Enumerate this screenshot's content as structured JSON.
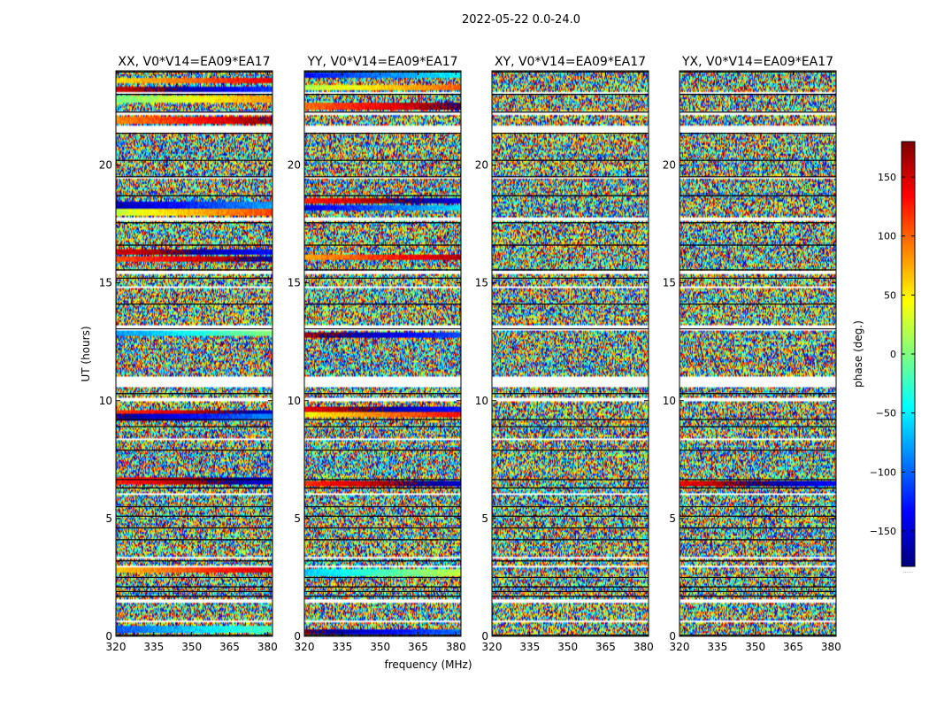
{
  "chart_data": {
    "type": "heatmap",
    "figure_title": "2022-05-22 0.0-24.0",
    "colorscale": "jet",
    "colorbar": {
      "label": "phase (deg.)",
      "range": [
        -180,
        180
      ],
      "ticks": [
        150,
        100,
        50,
        0,
        -50,
        -100,
        -150
      ],
      "tick_labels": [
        "150",
        "100",
        "50",
        "0",
        "−50",
        "−100",
        "−150"
      ],
      "footnote": "......"
    },
    "shared": {
      "xlabel": "frequency (MHz)",
      "ylabel": "UT (hours)",
      "xlim": [
        320,
        382
      ],
      "ylim": [
        0,
        24
      ],
      "xticks": [
        320,
        335,
        350,
        365,
        380
      ],
      "yticks": [
        0,
        5,
        10,
        15,
        20
      ]
    },
    "panels": [
      {
        "title": "XX, V0*V14=EA09*EA17",
        "coherent_bands": [
          {
            "y": 23.6,
            "phase": 100
          },
          {
            "y": 23.2,
            "phase": -160
          },
          {
            "y": 22.8,
            "phase": 40
          },
          {
            "y": 21.9,
            "phase": 130
          },
          {
            "y": 18.3,
            "phase": -120
          },
          {
            "y": 18.0,
            "phase": 70
          },
          {
            "y": 16.3,
            "phase": -170
          },
          {
            "y": 16.0,
            "phase": 150
          },
          {
            "y": 12.9,
            "phase": -40
          },
          {
            "y": 9.5,
            "phase": 160
          },
          {
            "y": 9.3,
            "phase": -130
          },
          {
            "y": 6.6,
            "phase": 170
          },
          {
            "y": 2.8,
            "phase": 110
          },
          {
            "y": 0.3,
            "phase": -60
          }
        ]
      },
      {
        "title": "YY, V0*V14=EA09*EA17",
        "coherent_bands": [
          {
            "y": 23.8,
            "phase": -90
          },
          {
            "y": 23.3,
            "phase": 60
          },
          {
            "y": 22.5,
            "phase": 140
          },
          {
            "y": 18.5,
            "phase": 170
          },
          {
            "y": 18.2,
            "phase": -100
          },
          {
            "y": 16.1,
            "phase": 120
          },
          {
            "y": 12.8,
            "phase": -150
          },
          {
            "y": 9.6,
            "phase": -170
          },
          {
            "y": 9.4,
            "phase": 90
          },
          {
            "y": 6.5,
            "phase": 165
          },
          {
            "y": 2.7,
            "phase": -20
          },
          {
            "y": 0.2,
            "phase": -140
          }
        ]
      },
      {
        "title": "XY, V0*V14=EA09*EA17",
        "coherent_bands": []
      },
      {
        "title": "YX, V0*V14=EA09*EA17",
        "coherent_bands": [
          {
            "y": 6.5,
            "phase": -175
          }
        ]
      }
    ],
    "flagged_gaps": [
      {
        "y0": 23.0,
        "y1": 23.1
      },
      {
        "y0": 22.1,
        "y1": 22.3
      },
      {
        "y0": 21.4,
        "y1": 21.7
      },
      {
        "y0": 19.4,
        "y1": 19.5
      },
      {
        "y0": 17.6,
        "y1": 17.8
      },
      {
        "y0": 15.4,
        "y1": 15.5
      },
      {
        "y0": 14.8,
        "y1": 14.85
      },
      {
        "y0": 13.0,
        "y1": 13.2
      },
      {
        "y0": 10.6,
        "y1": 11.0
      },
      {
        "y0": 10.0,
        "y1": 10.1
      },
      {
        "y0": 8.3,
        "y1": 8.4
      },
      {
        "y0": 6.0,
        "y1": 6.1
      },
      {
        "y0": 5.6,
        "y1": 5.65
      },
      {
        "y0": 3.3,
        "y1": 3.4
      },
      {
        "y0": 2.9,
        "y1": 3.0
      },
      {
        "y0": 1.4,
        "y1": 1.6
      },
      {
        "y0": 0.6,
        "y1": 0.65
      }
    ],
    "black_rows": [
      23.95,
      23.0,
      22.25,
      21.35,
      20.2,
      19.5,
      18.7,
      17.55,
      16.6,
      15.55,
      15.2,
      14.1,
      13.05,
      10.3,
      9.2,
      8.9,
      7.9,
      6.65,
      6.3,
      5.5,
      5.1,
      4.6,
      4.1,
      3.2,
      2.5,
      2.1,
      1.9,
      1.7,
      0.05
    ]
  }
}
